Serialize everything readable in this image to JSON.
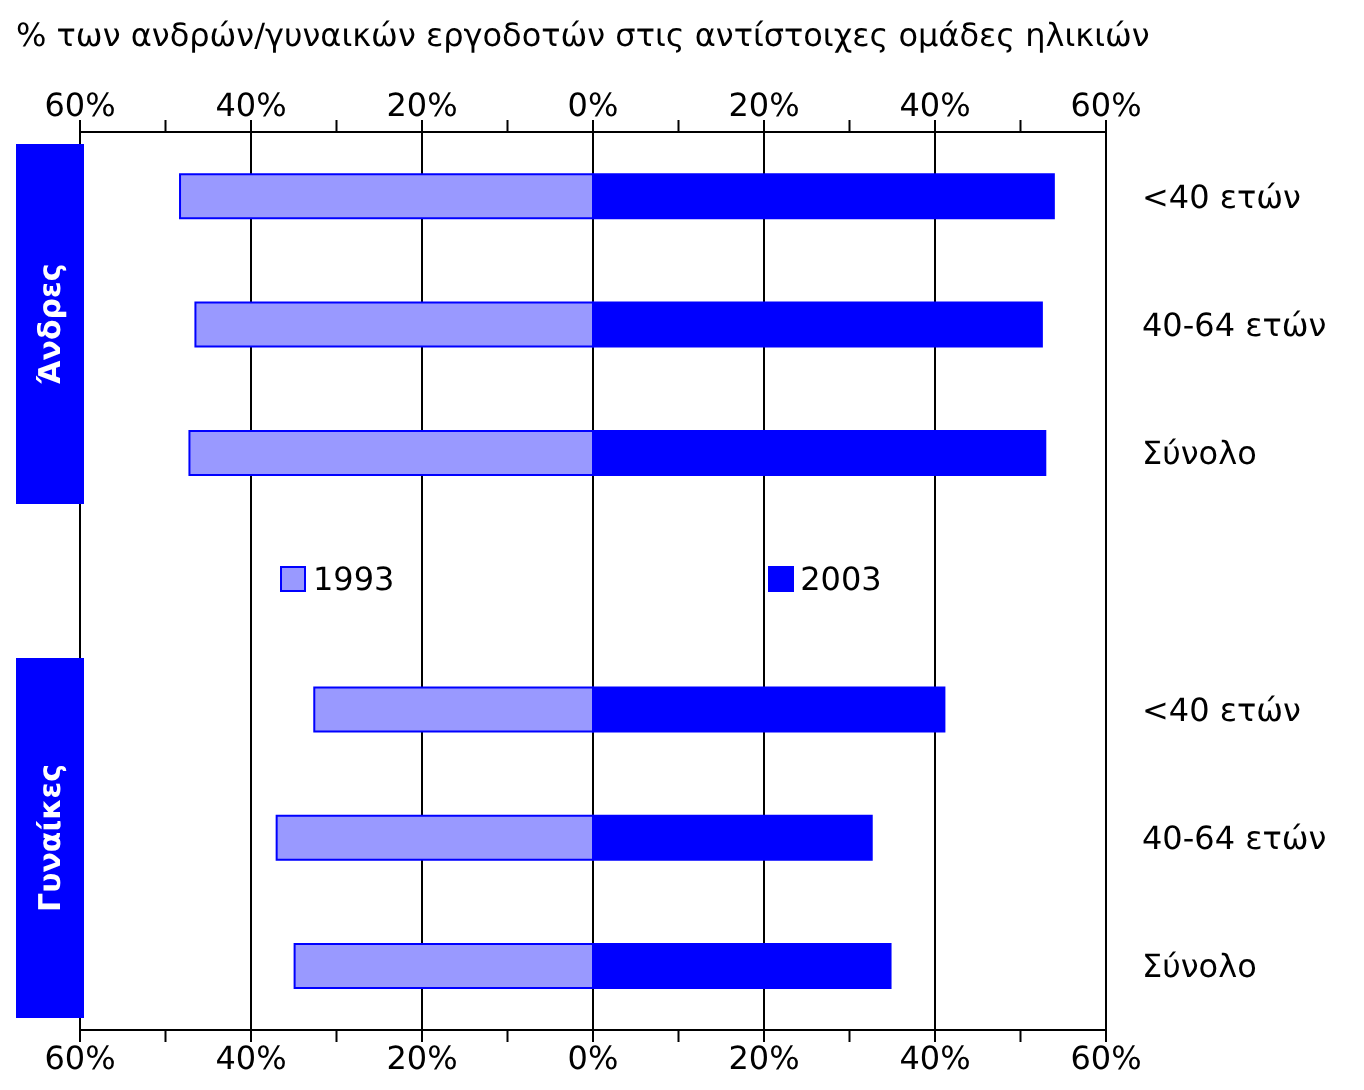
{
  "chart_data": {
    "type": "bar",
    "orientation": "horizontal",
    "stacked": true,
    "title": "% των ανδρών/γυναικών εργοδοτών στις αντίστοιχες ομάδες ηλικιών",
    "categories": [
      "<40 ετών",
      "40-64 ετών",
      "Σύνολο",
      null,
      "<40 ετών",
      "40-64 ετών",
      "Σύνολο"
    ],
    "series": [
      {
        "name": "1993",
        "color": "#9999ff",
        "values": [
          -48.3,
          -46.5,
          -47.2,
          null,
          -32.6,
          -37.0,
          -34.9
        ]
      },
      {
        "name": "2003",
        "color": "#0000ff",
        "values": [
          53.9,
          52.5,
          52.9,
          null,
          41.1,
          32.6,
          34.8
        ]
      }
    ],
    "xlim": [
      -60,
      60
    ],
    "xticks": [
      {
        "value": -60,
        "label": "60%"
      },
      {
        "value": -50,
        "label": null
      },
      {
        "value": -40,
        "label": "40%"
      },
      {
        "value": -30,
        "label": null
      },
      {
        "value": -20,
        "label": "20%"
      },
      {
        "value": -10,
        "label": null
      },
      {
        "value": 0,
        "label": "0%"
      },
      {
        "value": 10,
        "label": null
      },
      {
        "value": 20,
        "label": "20%"
      },
      {
        "value": 30,
        "label": null
      },
      {
        "value": 40,
        "label": "40%"
      },
      {
        "value": 50,
        "label": null
      },
      {
        "value": 60,
        "label": "60%"
      }
    ],
    "x2lim": [
      -60,
      60
    ],
    "x2ticks": [
      {
        "value": -60,
        "label": "60%"
      },
      {
        "value": -50,
        "label": null
      },
      {
        "value": -40,
        "label": "40%"
      },
      {
        "value": -30,
        "label": null
      },
      {
        "value": -20,
        "label": "20%"
      },
      {
        "value": -10,
        "label": null
      },
      {
        "value": 0,
        "label": "0%"
      },
      {
        "value": 10,
        "label": null
      },
      {
        "value": 20,
        "label": "20%"
      },
      {
        "value": 30,
        "label": null
      },
      {
        "value": 40,
        "label": "40%"
      },
      {
        "value": 50,
        "label": null
      },
      {
        "value": 60,
        "label": "60%"
      }
    ],
    "annotations": [
      "Άνδρες",
      "Γυναίκες"
    ],
    "grid": "x",
    "legend": "center"
  }
}
